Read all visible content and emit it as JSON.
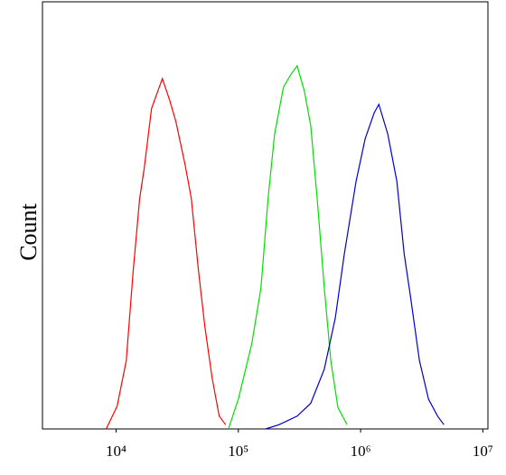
{
  "chart_data": {
    "type": "line",
    "y_label": "Count",
    "xscale": "log",
    "xlim": [
      2500,
      11000000
    ],
    "ylim": [
      0,
      100
    ],
    "xticks": [
      {
        "value": 10000,
        "label": "10⁴"
      },
      {
        "value": 100000,
        "label": "10⁵"
      },
      {
        "value": 1000000,
        "label": "10⁶"
      },
      {
        "value": 10000000,
        "label": "10⁷"
      }
    ],
    "series": [
      {
        "color": "#ff0000",
        "x": [
          8300,
          10200,
          12100,
          13800,
          15600,
          17000,
          19500,
          21900,
          23900,
          27400,
          30800,
          36600,
          41200,
          47200,
          53200,
          61000,
          69800,
          78700
        ],
        "values": [
          0,
          5.3,
          15.9,
          37,
          54,
          61,
          75,
          79,
          82,
          77,
          72,
          62,
          54,
          37,
          24,
          12,
          3,
          1
        ]
      },
      {
        "color": "#00e000",
        "x": [
          83000,
          100000,
          129000,
          153000,
          175000,
          198000,
          234000,
          269000,
          303000,
          347000,
          391000,
          441000,
          505000,
          570000,
          653000,
          775000
        ],
        "values": [
          0,
          7,
          20,
          33,
          54,
          69,
          80,
          83,
          85,
          79,
          71,
          54,
          33,
          16,
          5,
          1
        ]
      },
      {
        "color": "#0000cc",
        "x": [
          167000,
          215000,
          303000,
          391000,
          505000,
          621000,
          736000,
          919000,
          1090000,
          1290000,
          1410000,
          1670000,
          1980000,
          2270000,
          2560000,
          3030000,
          3590000,
          4260000,
          4800000
        ],
        "values": [
          0,
          1,
          3,
          6,
          14,
          26,
          41,
          58,
          68,
          74,
          76,
          69,
          58,
          41,
          31,
          16,
          7,
          3,
          1
        ]
      }
    ]
  }
}
